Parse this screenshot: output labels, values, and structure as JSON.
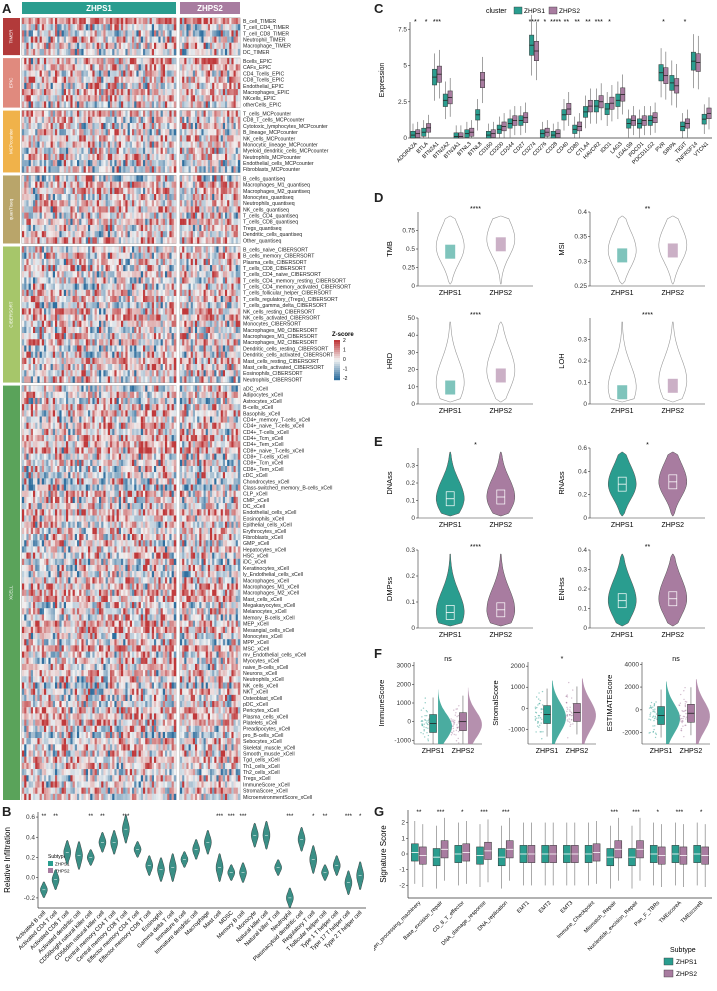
{
  "panels": {
    "a": "A",
    "b": "B",
    "c": "C",
    "d": "D",
    "e": "E",
    "f": "F",
    "g": "G"
  },
  "colors": {
    "zhps1": "#2a9d8f",
    "zhps2": "#a87ca0",
    "high": "#c0393b",
    "low": "#2f6f9f",
    "mid": "#f3f3f3"
  },
  "heatmap": {
    "groups": [
      "ZHPS1",
      "ZHPS2"
    ],
    "zscore_title": "Z-score",
    "zscore_ticks": [
      "2",
      "1",
      "0",
      "-1",
      "-2"
    ],
    "sections": [
      {
        "name": "TIMER",
        "color": "#b23a3a",
        "rows": [
          "B_cell_TIMER",
          "T_cell_CD4_TIMER",
          "T_cell_CD8_TIMER",
          "Neutrophil_TIMER",
          "Macrophage_TIMER",
          "DC_TIMER"
        ]
      },
      {
        "name": "EPIC",
        "color": "#e08a7e",
        "rows": [
          "Bcells_EPIC",
          "CAFs_EPIC",
          "CD4_Tcells_EPIC",
          "CD8_Tcells_EPIC",
          "Endothelial_EPIC",
          "Macrophages_EPIC",
          "NKcells_EPIC",
          "otherCells_EPIC"
        ]
      },
      {
        "name": "MCPcounter",
        "color": "#f0b24a",
        "rows": [
          "T_cells_MCPcounter",
          "CD8_T_cells_MCPcounter",
          "Cytotoxic_lymphocytes_MCPcounter",
          "B_lineage_MCPcounter",
          "NK_cells_MCPcounter",
          "Monocytic_lineage_MCPcounter",
          "Myeloid_dendritic_cells_MCPcounter",
          "Neutrophils_MCPcounter",
          "Endothelial_cells_MCPcounter",
          "Fibroblasts_MCPcounter"
        ]
      },
      {
        "name": "quanTIseq",
        "color": "#b9a56a",
        "rows": [
          "B_cells_quantiseq",
          "Macrophages_M1_quantiseq",
          "Macrophages_M2_quantiseq",
          "Monocytes_quantiseq",
          "Neutrophils_quantiseq",
          "NK_cells_quantiseq",
          "T_cells_CD4_quantiseq",
          "T_cells_CD8_quantiseq",
          "Tregs_quantiseq",
          "Dendritic_cells_quantiseq",
          "Other_quantiseq"
        ]
      },
      {
        "name": "CIBERSORT",
        "color": "#a6c66a",
        "rows": [
          "B_cells_naive_CIBERSORT",
          "B_cells_memory_CIBERSORT",
          "Plasma_cells_CIBERSORT",
          "T_cells_CD8_CIBERSORT",
          "T_cells_CD4_naive_CIBERSORT",
          "T_cells_CD4_memory_resting_CIBERSORT",
          "T_cells_CD4_memory_activated_CIBERSORT",
          "T_cells_follicular_helper_CIBERSORT",
          "T_cells_regulatory_(Tregs)_CIBERSORT",
          "T_cells_gamma_delta_CIBERSORT",
          "NK_cells_resting_CIBERSORT",
          "NK_cells_activated_CIBERSORT",
          "Monocytes_CIBERSORT",
          "Macrophages_M0_CIBERSORT",
          "Macrophages_M1_CIBERSORT",
          "Macrophages_M2_CIBERSORT",
          "Dendritic_cells_resting_CIBERSORT",
          "Dendritic_cells_activated_CIBERSORT",
          "Mast_cells_resting_CIBERSORT",
          "Mast_cells_activated_CIBERSORT",
          "Eosinophils_CIBERSORT",
          "Neutrophils_CIBERSORT"
        ]
      },
      {
        "name": "XCELL",
        "color": "#5aa35a",
        "rows": [
          "aDC_xCell",
          "Adipocytes_xCell",
          "Astrocytes_xCell",
          "B-cells_xCell",
          "Basophils_xCell",
          "CD4+_memory_T-cells_xCell",
          "CD4+_naive_T-cells_xCell",
          "CD4+_T-cells_xCell",
          "CD4+_Tcm_xCell",
          "CD4+_Tem_xCell",
          "CD8+_naive_T-cells_xCell",
          "CD8+_T-cells_xCell",
          "CD8+_Tcm_xCell",
          "CD8+_Tem_xCell",
          "cDC_xCell",
          "Chondrocytes_xCell",
          "Class-switched_memory_B-cells_xCell",
          "CLP_xCell",
          "CMP_xCell",
          "DC_xCell",
          "Endothelial_cells_xCell",
          "Eosinophils_xCell",
          "Epithelial_cells_xCell",
          "Erythrocytes_xCell",
          "Fibroblasts_xCell",
          "GMP_xCell",
          "Hepatocytes_xCell",
          "HSC_xCell",
          "iDC_xCell",
          "Keratinocytes_xCell",
          "ly_Endothelial_cells_xCell",
          "Macrophages_xCell",
          "Macrophages_M1_xCell",
          "Macrophages_M2_xCell",
          "Mast_cells_xCell",
          "Megakaryocytes_xCell",
          "Melanocytes_xCell",
          "Memory_B-cells_xCell",
          "MEP_xCell",
          "Mesangial_cells_xCell",
          "Monocytes_xCell",
          "MPP_xCell",
          "MSC_xCell",
          "mv_Endothelial_cells_xCell",
          "Myocytes_xCell",
          "naive_B-cells_xCell",
          "Neurons_xCell",
          "Neutrophils_xCell",
          "NK_cells_xCell",
          "NKT_xCell",
          "Osteoblast_xCell",
          "pDC_xCell",
          "Pericytes_xCell",
          "Plasma_cells_xCell",
          "Platelets_xCell",
          "Preadipocytes_xCell",
          "pro_B-cells_xCell",
          "Sebocytes_xCell",
          "Skeletal_muscle_xCell",
          "Smooth_muscle_xCell",
          "Tgd_cells_xCell",
          "Th1_cells_xCell",
          "Th2_cells_xCell",
          "Tregs_xCell",
          "ImmuneScore_xCell",
          "StromaScore_xCell",
          "MicroenvironmentScore_xCell"
        ]
      }
    ]
  },
  "chart_data": [
    {
      "panel": "C",
      "type": "box",
      "legend_title": "cluster",
      "groups": [
        "ZHPS1",
        "ZHPS2"
      ],
      "ylabel": "Expression",
      "ylim": [
        0,
        8
      ],
      "yticks": [
        0,
        2.5,
        5,
        7.5
      ],
      "categories": [
        "ADORA2A",
        "BTLA",
        "BTN2A1",
        "BTN2A2",
        "BTN3A1",
        "BTNL3",
        "BTNL8",
        "CD160",
        "CD200",
        "CD244",
        "CD27",
        "CD274",
        "CD276",
        "CD28",
        "CD40",
        "CD80",
        "CTLA4",
        "HAVCR2",
        "IDO1",
        "LAG3",
        "LGALS9",
        "PDCD1",
        "PDCD1LG2",
        "PVR",
        "SIRPA",
        "TIGIT",
        "TNFRSF14",
        "VTCN1"
      ],
      "zhps1": [
        0.2,
        0.4,
        4.2,
        2.6,
        0.1,
        0.3,
        1.6,
        0.2,
        0.6,
        1.0,
        1.2,
        6.4,
        0.3,
        0.2,
        1.6,
        0.6,
        1.8,
        2.2,
        2.0,
        2.6,
        1.0,
        1.0,
        1.2,
        4.5,
        3.8,
        0.8,
        5.3,
        1.3
      ],
      "zhps2": [
        0.3,
        0.7,
        4.4,
        2.8,
        0.1,
        0.4,
        4.0,
        0.3,
        0.8,
        1.2,
        1.4,
        6.0,
        0.4,
        0.3,
        2.0,
        0.8,
        2.2,
        2.5,
        2.4,
        3.0,
        1.2,
        1.2,
        1.4,
        4.3,
        3.6,
        1.0,
        5.2,
        1.7
      ],
      "sig": [
        "*",
        "*",
        "***",
        "",
        "",
        "",
        "",
        "",
        "",
        "",
        "",
        "****",
        "*",
        "****",
        "**",
        "**",
        "**",
        "***",
        "*",
        "",
        "",
        "",
        "",
        "*",
        "",
        "*",
        "",
        ""
      ]
    },
    {
      "panel": "D",
      "type": "violin",
      "ylabel": "TMB",
      "categories": [
        "ZHPS1",
        "ZHPS2"
      ],
      "ylim": [
        0,
        1
      ],
      "yticks": [
        0,
        0.25,
        0.5,
        0.75
      ],
      "medians": [
        0.45,
        0.55
      ],
      "sig": "****"
    },
    {
      "panel": "D",
      "type": "violin",
      "ylabel": "MSI",
      "categories": [
        "ZHPS1",
        "ZHPS2"
      ],
      "ylim": [
        0.25,
        0.4
      ],
      "yticks": [
        0.25,
        0.3,
        0.35,
        0.4
      ],
      "medians": [
        0.31,
        0.32
      ],
      "sig": "**"
    },
    {
      "panel": "D",
      "type": "violin",
      "ylabel": "HRD",
      "categories": [
        "ZHPS1",
        "ZHPS2"
      ],
      "ylim": [
        0,
        50
      ],
      "yticks": [
        0,
        10,
        20,
        30,
        40,
        50
      ],
      "medians": [
        9,
        16
      ],
      "sig": "****"
    },
    {
      "panel": "D",
      "type": "violin",
      "ylabel": "LOH",
      "categories": [
        "ZHPS1",
        "ZHPS2"
      ],
      "ylim": [
        0,
        0.4
      ],
      "yticks": [
        0,
        0.1,
        0.2,
        0.3
      ],
      "medians": [
        0.05,
        0.08
      ],
      "sig": "****"
    },
    {
      "panel": "E",
      "type": "violin",
      "ylabel": "DNAss",
      "categories": [
        "ZHPS1",
        "ZHPS2"
      ],
      "ylim": [
        0,
        0.4
      ],
      "yticks": [
        0,
        0.1,
        0.2,
        0.3
      ],
      "medians": [
        0.11,
        0.12
      ],
      "sig": "*"
    },
    {
      "panel": "E",
      "type": "violin",
      "ylabel": "RNAss",
      "categories": [
        "ZHPS1",
        "ZHPS2"
      ],
      "ylim": [
        0,
        0.6
      ],
      "yticks": [
        0,
        0.2,
        0.4,
        0.6
      ],
      "medians": [
        0.29,
        0.31
      ],
      "sig": "*"
    },
    {
      "panel": "E",
      "type": "violin",
      "ylabel": "DMPss",
      "categories": [
        "ZHPS1",
        "ZHPS2"
      ],
      "ylim": [
        0,
        0.3
      ],
      "yticks": [
        0,
        0.1,
        0.2,
        0.3
      ],
      "medians": [
        0.06,
        0.07
      ],
      "sig": "****"
    },
    {
      "panel": "E",
      "type": "violin",
      "ylabel": "ENHss",
      "categories": [
        "ZHPS1",
        "ZHPS2"
      ],
      "ylim": [
        0,
        0.4
      ],
      "yticks": [
        0,
        0.1,
        0.2,
        0.3,
        0.4
      ],
      "medians": [
        0.14,
        0.15
      ],
      "sig": "**"
    },
    {
      "panel": "F",
      "type": "raincloud",
      "ylabel": "ImmuneScore",
      "categories": [
        "ZHPS1",
        "ZHPS2"
      ],
      "ylim": [
        -1200,
        3200
      ],
      "yticks": [
        -1000,
        0,
        1000,
        2000,
        3000
      ],
      "medians": [
        -100,
        0
      ],
      "sig": "ns"
    },
    {
      "panel": "F",
      "type": "raincloud",
      "ylabel": "StromalScore",
      "categories": [
        "ZHPS1",
        "ZHPS2"
      ],
      "ylim": [
        -1700,
        2200
      ],
      "yticks": [
        -1000,
        0,
        1000,
        2000
      ],
      "medians": [
        -300,
        -200
      ],
      "sig": "*"
    },
    {
      "panel": "F",
      "type": "raincloud",
      "ylabel": "ESTIMATEScore",
      "categories": [
        "ZHPS1",
        "ZHPS2"
      ],
      "ylim": [
        -3000,
        4200
      ],
      "yticks": [
        -2000,
        0,
        2000,
        4000
      ],
      "medians": [
        -500,
        -300
      ],
      "sig": "ns"
    },
    {
      "panel": "B",
      "type": "violin",
      "ylabel": "Relative Infiltration",
      "ylim": [
        -0.3,
        0.65
      ],
      "yticks": [
        -0.2,
        0.0,
        0.2,
        0.4,
        0.6
      ],
      "legend_title": "Subtype",
      "groups": [
        "ZHPS1",
        "ZHPS2"
      ],
      "categories": [
        "Activated B cell",
        "Activated CD4 T cell",
        "Activated CD8 T cell",
        "Activated dendritic cell",
        "CD56bright natural killer cell",
        "CD56dim natural killer cell",
        "Central memory CD4 T cell",
        "Central memory CD8 T cell",
        "Effector memory CD4 T cell",
        "Effector memory CD8 T cell",
        "Eosinophil",
        "Gamma delta T cell",
        "Immature B cell",
        "Immature dendritic cell",
        "Macrophage",
        "Mast cell",
        "MDSC",
        "Memory B cell",
        "Monocyte",
        "Natural killer cell",
        "Natural killer T cell",
        "Neutrophil",
        "Plasmacytoid dendritic cell",
        "Regulatory T cell",
        "T follicular helper cell",
        "Type 1 T helper cell",
        "Type 17 T helper cell",
        "Type 2 T helper cell"
      ],
      "medians": [
        -0.12,
        -0.02,
        0.25,
        0.22,
        0.2,
        0.35,
        0.35,
        0.48,
        0.28,
        0.12,
        0.08,
        0.1,
        0.18,
        0.28,
        0.35,
        0.1,
        0.05,
        0.05,
        0.42,
        0.42,
        0.1,
        -0.2,
        0.38,
        0.18,
        0.05,
        0.12,
        -0.05,
        0.02
      ],
      "sig": [
        "**",
        "**",
        "",
        "",
        "**",
        "**",
        "",
        "***",
        "",
        "",
        "",
        "",
        "",
        "",
        "",
        "***",
        "***",
        "***",
        "",
        "",
        "",
        "***",
        "",
        "*",
        "**",
        "",
        "***",
        "*"
      ]
    },
    {
      "panel": "G",
      "type": "box",
      "ylabel": "Signature Score",
      "ylim": [
        -2.8,
        2.8
      ],
      "yticks": [
        -2,
        -1,
        0,
        1,
        2
      ],
      "legend_title": "Subtype",
      "groups": [
        "ZHPS1",
        "ZHPS2"
      ],
      "categories": [
        "Antigen_processing_machinery",
        "Base_excision_repair",
        "CD_8_T_effector",
        "DNA_damage_response",
        "DNA_replication",
        "EMT1",
        "EMT2",
        "EMT3",
        "Immune_Checkpoint",
        "Mismatch_Repair",
        "Nucleotide_excision_Repair",
        "Pan_F_TBRs",
        "TMEscoreA",
        "TMEscoreB"
      ],
      "zhps1": [
        0.1,
        -0.2,
        0.0,
        -0.1,
        -0.2,
        0.0,
        0.0,
        0.0,
        0.0,
        -0.2,
        -0.2,
        0.0,
        0.0,
        0.0
      ],
      "zhps2": [
        -0.1,
        0.3,
        0.1,
        0.2,
        0.3,
        0.0,
        0.0,
        0.0,
        0.1,
        0.3,
        0.3,
        -0.1,
        -0.1,
        -0.1
      ],
      "sig": [
        "**",
        "***",
        "*",
        "***",
        "***",
        "",
        "",
        "",
        "",
        "***",
        "***",
        "*",
        "***",
        "*"
      ]
    }
  ]
}
